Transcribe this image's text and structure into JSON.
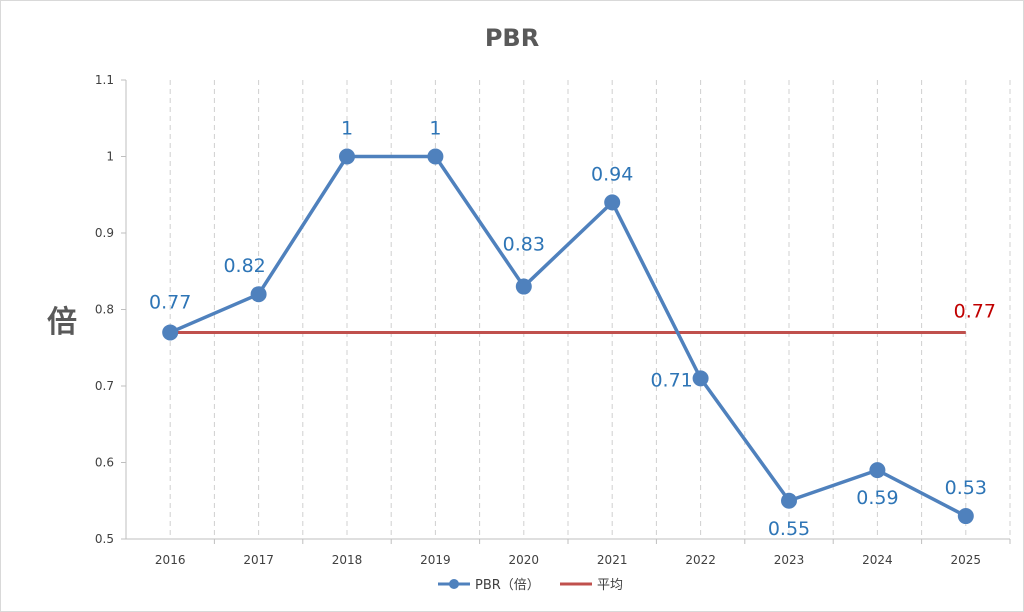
{
  "chart_data": {
    "type": "line",
    "title": "PBR",
    "ylabel": "倍",
    "xlabel": "",
    "categories": [
      "2016",
      "2017",
      "2018",
      "2019",
      "2020",
      "2021",
      "2022",
      "2023",
      "2024",
      "2025"
    ],
    "ylim": [
      0.5,
      1.1
    ],
    "yticks": [
      "0.5",
      "0.6",
      "0.7",
      "0.8",
      "0.9",
      "1",
      "1.1"
    ],
    "series": [
      {
        "name": "PBR（倍）",
        "values": [
          0.77,
          0.82,
          1,
          1,
          0.83,
          0.94,
          0.71,
          0.55,
          0.59,
          0.53
        ],
        "labels": [
          "0.77",
          "0.82",
          "1",
          "1",
          "0.83",
          "0.94",
          "0.71",
          "0.55",
          "0.59",
          "0.53"
        ],
        "color": "#4f81bd",
        "label_color": "#2e75b6",
        "marker": "circle"
      },
      {
        "name": "平均",
        "values": [
          0.77,
          0.77,
          0.77,
          0.77,
          0.77,
          0.77,
          0.77,
          0.77,
          0.77,
          0.77
        ],
        "end_label": "0.77",
        "color": "#c0504d",
        "label_color": "#c00000"
      }
    ],
    "grid": {
      "vertical": true,
      "horizontal": false,
      "style": "dashed"
    },
    "legend": "bottom"
  }
}
